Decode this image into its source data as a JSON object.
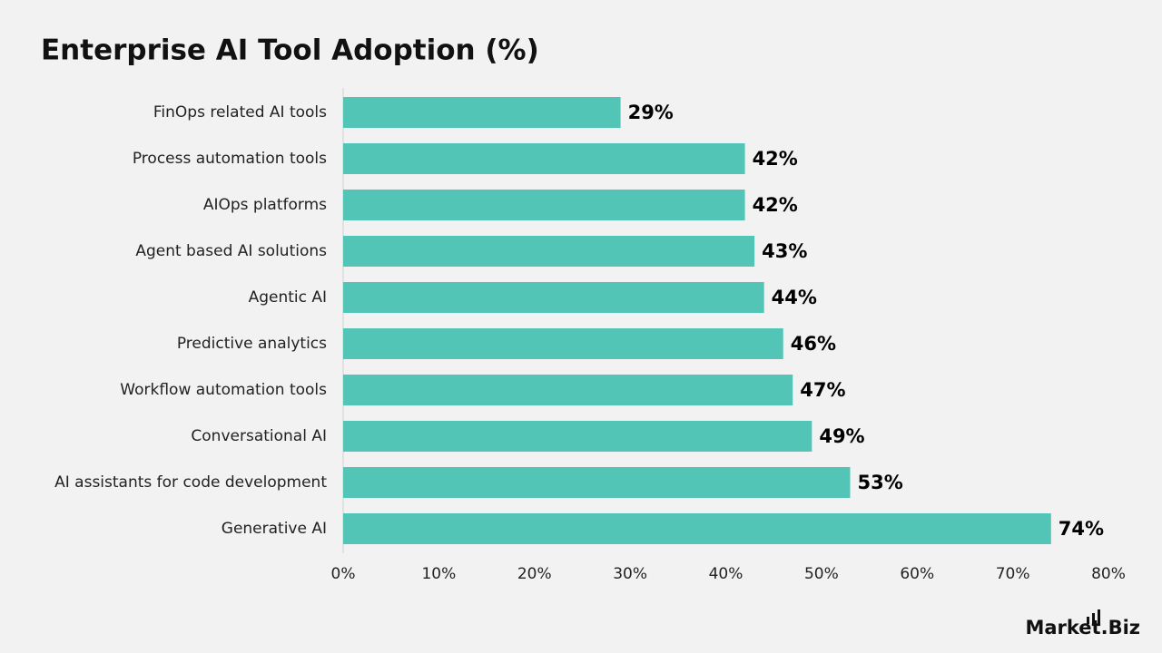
{
  "chart_data": {
    "type": "bar",
    "orientation": "horizontal",
    "title": "Enterprise AI Tool Adoption (%)",
    "categories": [
      "FinOps related AI tools",
      "Process automation tools",
      "AIOps platforms",
      "Agent based AI solutions",
      "Agentic AI",
      "Predictive analytics",
      "Workflow automation tools",
      "Conversational AI",
      "AI assistants for code development",
      "Generative AI"
    ],
    "values": [
      29,
      42,
      42,
      43,
      44,
      46,
      47,
      49,
      53,
      74
    ],
    "value_labels": [
      "29%",
      "42%",
      "42%",
      "43%",
      "44%",
      "46%",
      "47%",
      "49%",
      "53%",
      "74%"
    ],
    "color": "#52c5b6",
    "xlim": [
      0,
      80
    ],
    "xticks": [
      {
        "value": 0,
        "label": "0%"
      },
      {
        "value": 10,
        "label": "10%"
      },
      {
        "value": 20,
        "label": "20%"
      },
      {
        "value": 30,
        "label": "30%"
      },
      {
        "value": 40,
        "label": "40%"
      },
      {
        "value": 50,
        "label": "50%"
      },
      {
        "value": 60,
        "label": "60%"
      },
      {
        "value": 70,
        "label": "70%"
      },
      {
        "value": 80,
        "label": "80%"
      }
    ],
    "grid": false,
    "logo": "Market.Biz"
  }
}
